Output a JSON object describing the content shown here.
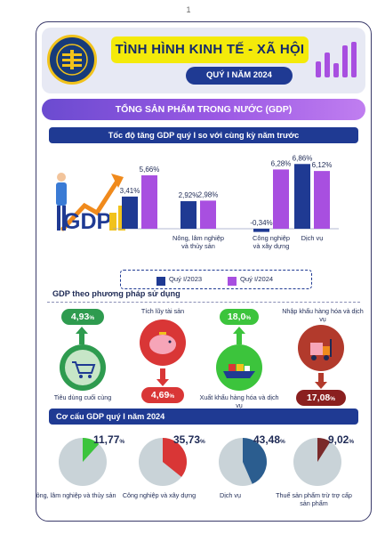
{
  "page_number": "1",
  "header": {
    "title": "TÌNH HÌNH KINH TẾ - XÃ HỘI",
    "period": "QUÝ I NĂM 2024",
    "logo_icon": "statistics-office-seal"
  },
  "banner": "TỔNG SẢN PHẨM TRONG NƯỚC (GDP)",
  "growth_section": {
    "title": "Tốc độ tăng GDP quý I so với cùng kỳ năm trước",
    "illustration_text": "GDP"
  },
  "usage_section": {
    "title": "GDP theo phương pháp sử dụng",
    "items": [
      {
        "label": "Tiêu dùng cuối cùng",
        "value": "4,93",
        "unit": "%",
        "icon": "shopping-cart-icon",
        "direction": "up",
        "color": "#2e9b4f"
      },
      {
        "label": "Tích lũy tài sản",
        "value": "4,69",
        "unit": "%",
        "icon": "piggy-bank-icon",
        "direction": "down",
        "color": "#d93636"
      },
      {
        "label": "Xuất khẩu hàng hóa và dịch vụ",
        "value": "18,0",
        "unit": "%",
        "icon": "cargo-ship-icon",
        "direction": "up",
        "color": "#2e9b4f"
      },
      {
        "label": "Nhập khẩu hàng hóa và dịch vụ",
        "value": "17,08",
        "unit": "%",
        "icon": "forklift-icon",
        "direction": "down",
        "color": "#b23a2c"
      }
    ]
  },
  "structure_section": {
    "title": "Cơ cấu GDP quý I năm 2024"
  },
  "chart_data": [
    {
      "type": "bar",
      "title": "Tốc độ tăng GDP quý I so với cùng kỳ năm trước",
      "categories": [
        "GDP",
        "Nông, lâm nghiệp và thủy sản",
        "Công nghiệp và xây dựng",
        "Dịch vụ"
      ],
      "category_labels": [
        "",
        "Nông, lâm nghiệp\nvà thủy sản",
        "Công nghiệp\nvà xây dựng",
        "Dịch vụ"
      ],
      "series": [
        {
          "name": "Quý I/2023",
          "values": [
            3.41,
            2.92,
            -0.34,
            6.86
          ],
          "labels": [
            "3,41%",
            "2,92%",
            "-0,34%",
            "6,86%"
          ],
          "color": "#1f3a93"
        },
        {
          "name": "Quý I/2024",
          "values": [
            5.66,
            2.98,
            6.28,
            6.12
          ],
          "labels": [
            "5,66%",
            "2,98%",
            "6,28%",
            "6,12%"
          ],
          "color": "#a84fe0"
        }
      ],
      "ylim": [
        -1,
        7.5
      ],
      "legend": "bottom"
    },
    {
      "type": "pie",
      "title": "Cơ cấu GDP quý I năm 2024",
      "categories": [
        "Nông, lâm nghiệp và thủy sản",
        "Công nghiệp và xây dựng",
        "Dịch vụ",
        "Thuế sản phẩm trừ trợ cấp sản phẩm"
      ],
      "values": [
        11.77,
        35.73,
        43.48,
        9.02
      ],
      "labels": [
        "11,77",
        "35,73",
        "43,48",
        "9,02"
      ],
      "unit": "%",
      "colors": [
        "#3cc43c",
        "#d93636",
        "#2b5d8f",
        "#7a2a2a"
      ],
      "remainder_color": "#c9d3d8"
    }
  ]
}
